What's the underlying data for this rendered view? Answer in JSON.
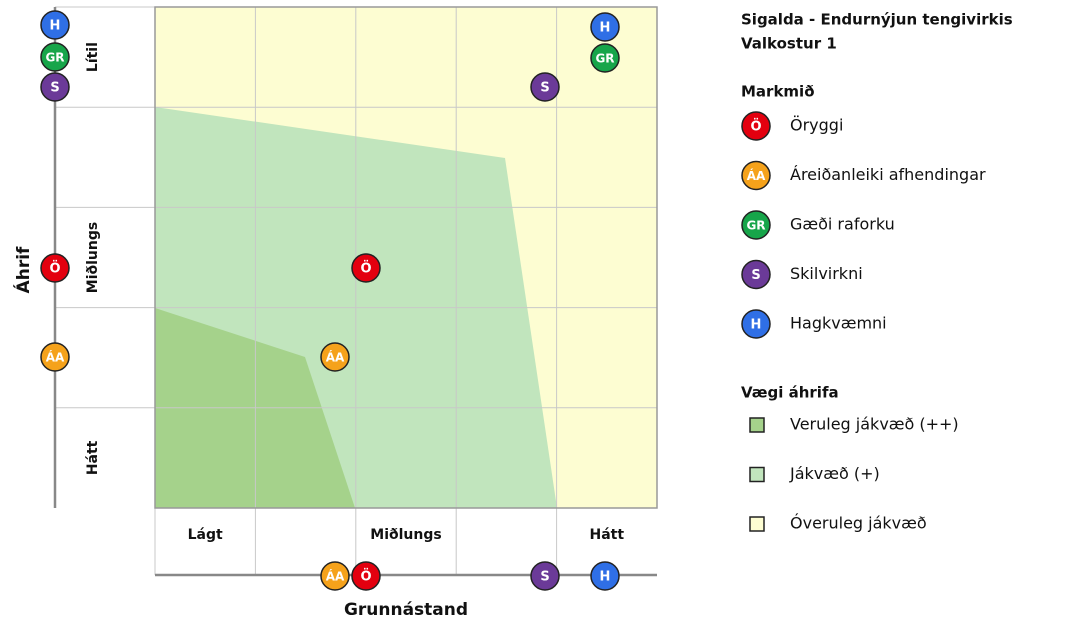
{
  "title": [
    "Sigalda - Endurnýjun tengivirkis",
    "Valkostur 1"
  ],
  "y_axis": {
    "label": "Áhrif",
    "levels": [
      "Lítil",
      "Miðlungs",
      "Hátt"
    ]
  },
  "x_axis": {
    "label": "Grunnástand",
    "levels": [
      "Lágt",
      "Miðlungs",
      "Hátt"
    ]
  },
  "legend_objectives": {
    "title": "Markmið",
    "items": [
      {
        "symbol": "Ö",
        "name": "Öryggi",
        "color": "#e3000f"
      },
      {
        "symbol": "ÁA",
        "name": "Áreiðanleiki afhendingar",
        "color": "#f5a21b"
      },
      {
        "symbol": "GR",
        "name": "Gæði raforku",
        "color": "#17a54a"
      },
      {
        "symbol": "S",
        "name": "Skilvirkni",
        "color": "#6b3a98"
      },
      {
        "symbol": "H",
        "name": "Hagkvæmni",
        "color": "#2f6fe6"
      }
    ]
  },
  "legend_weights": {
    "title": "Vægi áhrifa",
    "items": [
      {
        "name": "Veruleg jákvæð (++)",
        "color": "#a5d28b"
      },
      {
        "name": "Jákvæð (+)",
        "color": "#c1e5bd"
      },
      {
        "name": "Óveruleg jákvæð",
        "color": "#fdfdd2"
      }
    ]
  },
  "markers_left": [
    {
      "label": "H",
      "color": "#2f6fe6"
    },
    {
      "label": "GR",
      "color": "#17a54a"
    },
    {
      "label": "S",
      "color": "#6b3a98"
    },
    {
      "label": "Ö",
      "color": "#e3000f"
    },
    {
      "label": "ÁA",
      "color": "#f5a21b"
    }
  ],
  "markers_grid": [
    {
      "label": "H",
      "color": "#2f6fe6"
    },
    {
      "label": "GR",
      "color": "#17a54a"
    },
    {
      "label": "S",
      "color": "#6b3a98"
    },
    {
      "label": "Ö",
      "color": "#e3000f"
    },
    {
      "label": "ÁA",
      "color": "#f5a21b"
    }
  ],
  "markers_bottom": [
    {
      "label": "ÁA",
      "color": "#f5a21b"
    },
    {
      "label": "Ö",
      "color": "#e3000f"
    },
    {
      "label": "S",
      "color": "#6b3a98"
    },
    {
      "label": "H",
      "color": "#2f6fe6"
    }
  ]
}
